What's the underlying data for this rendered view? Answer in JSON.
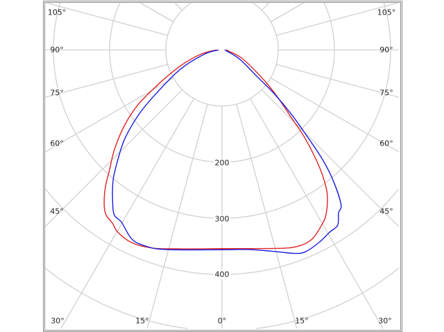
{
  "chart_data": {
    "type": "polar-line",
    "radial_ticks": [
      "200",
      "300",
      "400"
    ],
    "radial_grid_values": [
      100,
      200,
      300,
      400,
      500,
      600,
      700
    ],
    "angle_grid_step_deg": 15,
    "angle_labels_left": [
      "105°",
      "90°",
      "75°",
      "60°",
      "45°"
    ],
    "angle_labels_right": [
      "105°",
      "90°",
      "75°",
      "60°",
      "45°"
    ],
    "angle_labels_bottom": [
      "30°",
      "15°",
      "0°",
      "15°",
      "30°"
    ],
    "grid": true,
    "series": [
      {
        "color": "#e02020",
        "points": [
          [
            -90,
            10
          ],
          [
            -78.7,
            38
          ],
          [
            -69,
            79
          ],
          [
            -61.9,
            126
          ],
          [
            -57,
            177
          ],
          [
            -52.4,
            218
          ],
          [
            -47.3,
            260
          ],
          [
            -43.1,
            293
          ],
          [
            -40.3,
            321
          ],
          [
            -37.3,
            346
          ],
          [
            -35.1,
            359
          ],
          [
            -32.3,
            365
          ],
          [
            -29.7,
            374
          ],
          [
            -25.1,
            379
          ],
          [
            -19.3,
            374
          ],
          [
            -11.8,
            362
          ],
          [
            0,
            354
          ],
          [
            15.6,
            367
          ],
          [
            21.2,
            375
          ],
          [
            25.5,
            373
          ],
          [
            30.1,
            357
          ],
          [
            32.2,
            347
          ],
          [
            34.9,
            328
          ],
          [
            37.1,
            307
          ],
          [
            39.8,
            270
          ],
          [
            43.2,
            216
          ],
          [
            45.6,
            173
          ],
          [
            49.6,
            130
          ],
          [
            54.4,
            91
          ],
          [
            66.6,
            40
          ],
          [
            78.7,
            13
          ],
          [
            90,
            8
          ]
        ]
      },
      {
        "color": "#1a1ae0",
        "points": [
          [
            -90,
            6
          ],
          [
            -76.5,
            32
          ],
          [
            -65,
            82
          ],
          [
            -56.4,
            141
          ],
          [
            -52.2,
            187
          ],
          [
            -47.6,
            234
          ],
          [
            -43.5,
            269
          ],
          [
            -39.9,
            302
          ],
          [
            -35.9,
            332
          ],
          [
            -33.1,
            351
          ],
          [
            -30.3,
            355
          ],
          [
            -25.5,
            373
          ],
          [
            -21.2,
            375
          ],
          [
            -15.5,
            369
          ],
          [
            0,
            356
          ],
          [
            7.9,
            359
          ],
          [
            15.4,
            373
          ],
          [
            19.7,
            385
          ],
          [
            22.4,
            389
          ],
          [
            26.7,
            384
          ],
          [
            30.5,
            377
          ],
          [
            33.4,
            374
          ],
          [
            35.5,
            357
          ],
          [
            37.6,
            347
          ],
          [
            40.4,
            305
          ],
          [
            42.5,
            265
          ],
          [
            44.3,
            221
          ],
          [
            47.1,
            169
          ],
          [
            50,
            121
          ],
          [
            52.8,
            78
          ],
          [
            62.5,
            35
          ],
          [
            78,
            8
          ],
          [
            90,
            5
          ]
        ]
      }
    ]
  }
}
